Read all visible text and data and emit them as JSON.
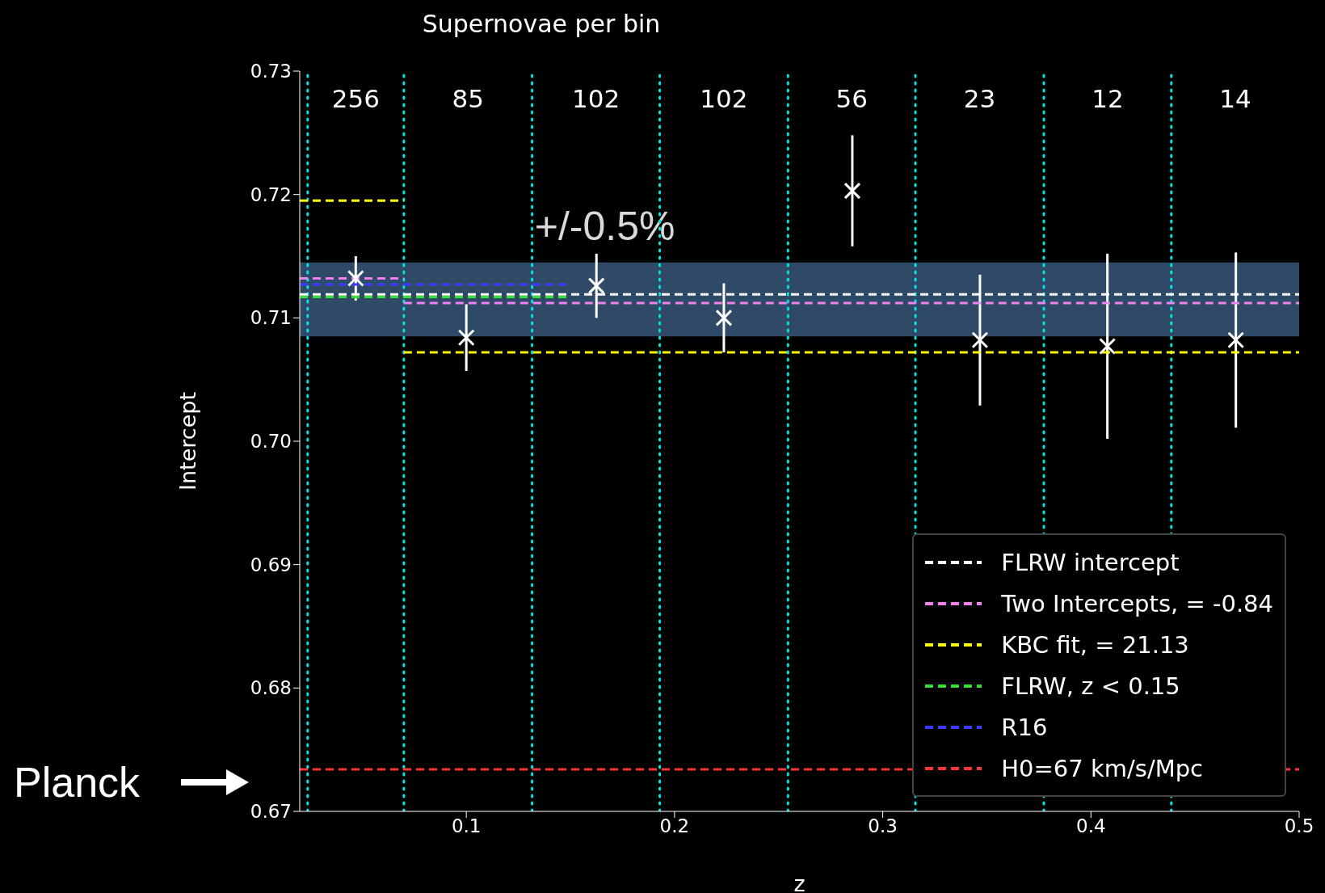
{
  "chart_data": {
    "type": "scatter",
    "x2label": "Supernovae per bin",
    "xlabel": "z",
    "ylabel": "Intercept",
    "xlim": [
      0.02,
      0.5
    ],
    "xticks": [
      0.1,
      0.2,
      0.3,
      0.4,
      0.5
    ],
    "ylim": [
      0.67,
      0.73
    ],
    "yticks": [
      0.67,
      0.68,
      0.69,
      {
        "value": 0.7,
        "label": "0.70"
      },
      0.71,
      0.72,
      0.73
    ],
    "legend": "bottom right",
    "line_style": "dashed",
    "series": [
      {
        "marker": "cross",
        "color": "#ffffff",
        "x": [
          0.0469,
          0.1,
          0.1625,
          0.2237,
          0.2854,
          0.3467,
          0.4079,
          0.4696
        ],
        "values": [
          0.7132,
          0.7084,
          0.7126,
          0.71,
          0.7203,
          0.7082,
          0.7077,
          0.7082
        ],
        "errors": [
          0.0018,
          0.0027,
          0.0026,
          0.0028,
          0.0045,
          0.0053,
          0.0075,
          0.0071
        ]
      },
      {
        "type": "line",
        "name": "FLRW intercept",
        "color": "#ffffff",
        "x": [
          0.02,
          0.5
        ],
        "values": [
          0.7119,
          0.7119
        ]
      },
      {
        "type": "line",
        "name": "Two Intercepts, = -0.84",
        "color": "#ee82ee",
        "x": [
          0.02,
          0.07
        ],
        "values": [
          0.7132,
          0.7132
        ]
      },
      {
        "type": "line",
        "color": "#ee82ee",
        "x": [
          0.07,
          0.5
        ],
        "values": [
          0.7112,
          0.7112
        ]
      },
      {
        "type": "line",
        "name": "KBC fit, = 21.13",
        "color": "#ffff00",
        "x": [
          0.02,
          0.07
        ],
        "values": [
          0.7195,
          0.7195
        ]
      },
      {
        "type": "line",
        "color": "#ffff00",
        "x": [
          0.07,
          0.5
        ],
        "values": [
          0.7072,
          0.7072
        ]
      },
      {
        "type": "line",
        "name": "FLRW, z < 0.15",
        "color": "#33dd33",
        "x": [
          0.02,
          0.15
        ],
        "values": [
          0.7117,
          0.7117
        ]
      },
      {
        "type": "line",
        "name": "R16",
        "color": "#3a3aff",
        "x": [
          0.02,
          0.15
        ],
        "values": [
          0.7127,
          0.7127
        ]
      },
      {
        "type": "line",
        "name": "H0=67 km/s/Mpc",
        "color": "#ff3333",
        "x": [
          0.02,
          0.5
        ],
        "values": [
          0.6734,
          0.6734
        ]
      }
    ],
    "bands": [
      {
        "axis": "y",
        "from": 0.7085,
        "to": 0.7145,
        "label": "+/-0.5%",
        "color": "#2e4a66"
      }
    ],
    "ref_lines": [
      {
        "axis": "x",
        "value": 0.0238,
        "color": "#00e5e5",
        "line_style": "dotted"
      },
      {
        "axis": "x",
        "value": 0.07,
        "color": "#00e5e5",
        "line_style": "dotted"
      },
      {
        "axis": "x",
        "value": 0.1316,
        "color": "#00e5e5",
        "line_style": "dotted"
      },
      {
        "axis": "x",
        "value": 0.1929,
        "color": "#00e5e5",
        "line_style": "dotted"
      },
      {
        "axis": "x",
        "value": 0.2545,
        "color": "#00e5e5",
        "line_style": "dotted"
      },
      {
        "axis": "x",
        "value": 0.3157,
        "color": "#00e5e5",
        "line_style": "dotted"
      },
      {
        "axis": "x",
        "value": 0.3774,
        "color": "#00e5e5",
        "line_style": "dotted"
      },
      {
        "axis": "x",
        "value": 0.4386,
        "color": "#00e5e5",
        "line_style": "dotted"
      }
    ],
    "annotations": [
      "256",
      "85",
      "102",
      "102",
      "56",
      "23",
      "12",
      "14",
      "Planck"
    ]
  }
}
